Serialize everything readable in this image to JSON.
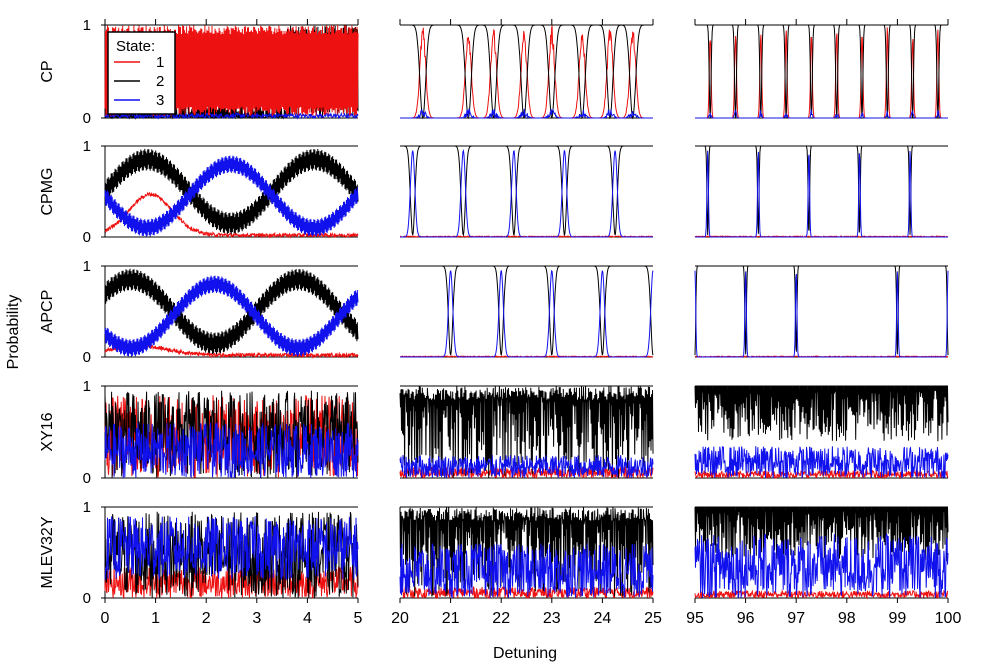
{
  "figure": {
    "ylabel": "Probability",
    "xlabel": "Detuning",
    "legend": {
      "title": "State:",
      "entries": [
        "1",
        "2",
        "3"
      ],
      "placement": "inside top-left of first panel"
    },
    "colors": {
      "state1": "#ee1111",
      "state2": "#000000",
      "state3": "#1111ee"
    }
  },
  "chart_data": {
    "type": "line",
    "rows": [
      "CP",
      "CPMG",
      "APCP",
      "XY16",
      "MLEV32Y"
    ],
    "columns": [
      {
        "xlim": [
          0,
          5
        ],
        "xticks": [
          "0",
          "1",
          "2",
          "3",
          "4",
          "5"
        ]
      },
      {
        "xlim": [
          20,
          25
        ],
        "xticks": [
          "20",
          "21",
          "22",
          "23",
          "24",
          "25"
        ]
      },
      {
        "xlim": [
          95,
          100
        ],
        "xticks": [
          "95",
          "96",
          "97",
          "98",
          "99",
          "100"
        ]
      }
    ],
    "ylim": [
      0,
      1
    ],
    "yticks": [
      "0",
      "1"
    ],
    "series": [
      {
        "name": "1",
        "color": "#ee1111"
      },
      {
        "name": "2",
        "color": "#000000"
      },
      {
        "name": "3",
        "color": "#1111ee"
      }
    ],
    "resonance_dips": {
      "CP": {
        "col1": [
          20.45,
          21.35,
          21.85,
          22.45,
          23.0,
          23.6,
          24.15,
          24.6
        ],
        "col2": [
          95.3,
          95.8,
          96.3,
          96.8,
          97.3,
          97.8,
          98.3,
          98.8,
          99.3,
          99.8
        ]
      },
      "CPMG": {
        "col1": [
          20.25,
          21.25,
          22.25,
          23.25,
          24.25
        ],
        "col2": [
          95.25,
          96.25,
          97.25,
          98.25,
          99.25
        ]
      },
      "APCP": {
        "col1": [
          21.0,
          22.0,
          23.0,
          24.0,
          25.0
        ],
        "col2": [
          95.0,
          96.0,
          97.0,
          99.0,
          100.0
        ]
      }
    },
    "note_rows": {
      "CP": "fast oscillations, state 1 dominant",
      "CPMG": "slow exchange between states 2 and 3",
      "APCP": "slow exchange between states 2 and 3",
      "XY16": "dense oscillations",
      "MLEV32Y": "dense oscillations"
    }
  }
}
